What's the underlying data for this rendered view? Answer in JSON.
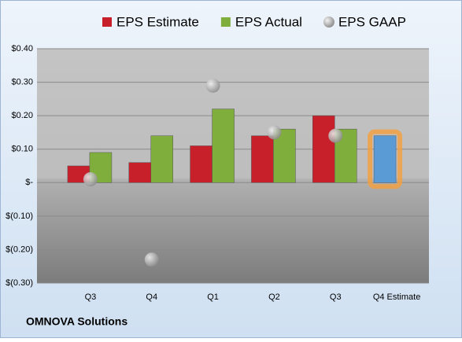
{
  "chart_data": {
    "type": "bar",
    "categories": [
      "Q3",
      "Q4",
      "Q1",
      "Q2",
      "Q3",
      "Q4 Estimate"
    ],
    "series": [
      {
        "name": "EPS Estimate",
        "type": "bar",
        "color": "#c8202a",
        "colors": [
          "#c8202a",
          "#c8202a",
          "#c8202a",
          "#c8202a",
          "#c8202a",
          "#5b9bd5"
        ],
        "values": [
          0.05,
          0.06,
          0.11,
          0.14,
          0.2,
          0.14
        ]
      },
      {
        "name": "EPS Actual",
        "type": "bar",
        "color": "#7fae3c",
        "values": [
          0.09,
          0.14,
          0.22,
          0.16,
          0.16,
          null
        ]
      },
      {
        "name": "EPS GAAP",
        "type": "scatter",
        "color": "#a8a8a8",
        "values": [
          0.01,
          -0.23,
          0.29,
          0.15,
          0.14,
          null
        ]
      }
    ],
    "ylim": [
      -0.3,
      0.4
    ],
    "yticks": [
      {
        "value": 0.4,
        "label": "$0.40"
      },
      {
        "value": 0.3,
        "label": "$0.30"
      },
      {
        "value": 0.2,
        "label": "$0.20"
      },
      {
        "value": 0.1,
        "label": "$0.10"
      },
      {
        "value": 0,
        "label": "$-"
      },
      {
        "value": -0.1,
        "label": "$(0.10)"
      },
      {
        "value": -0.2,
        "label": "$(0.20)"
      },
      {
        "value": -0.3,
        "label": "$(0.30)"
      }
    ],
    "grid": true,
    "footer": "OMNOVA Solutions"
  }
}
